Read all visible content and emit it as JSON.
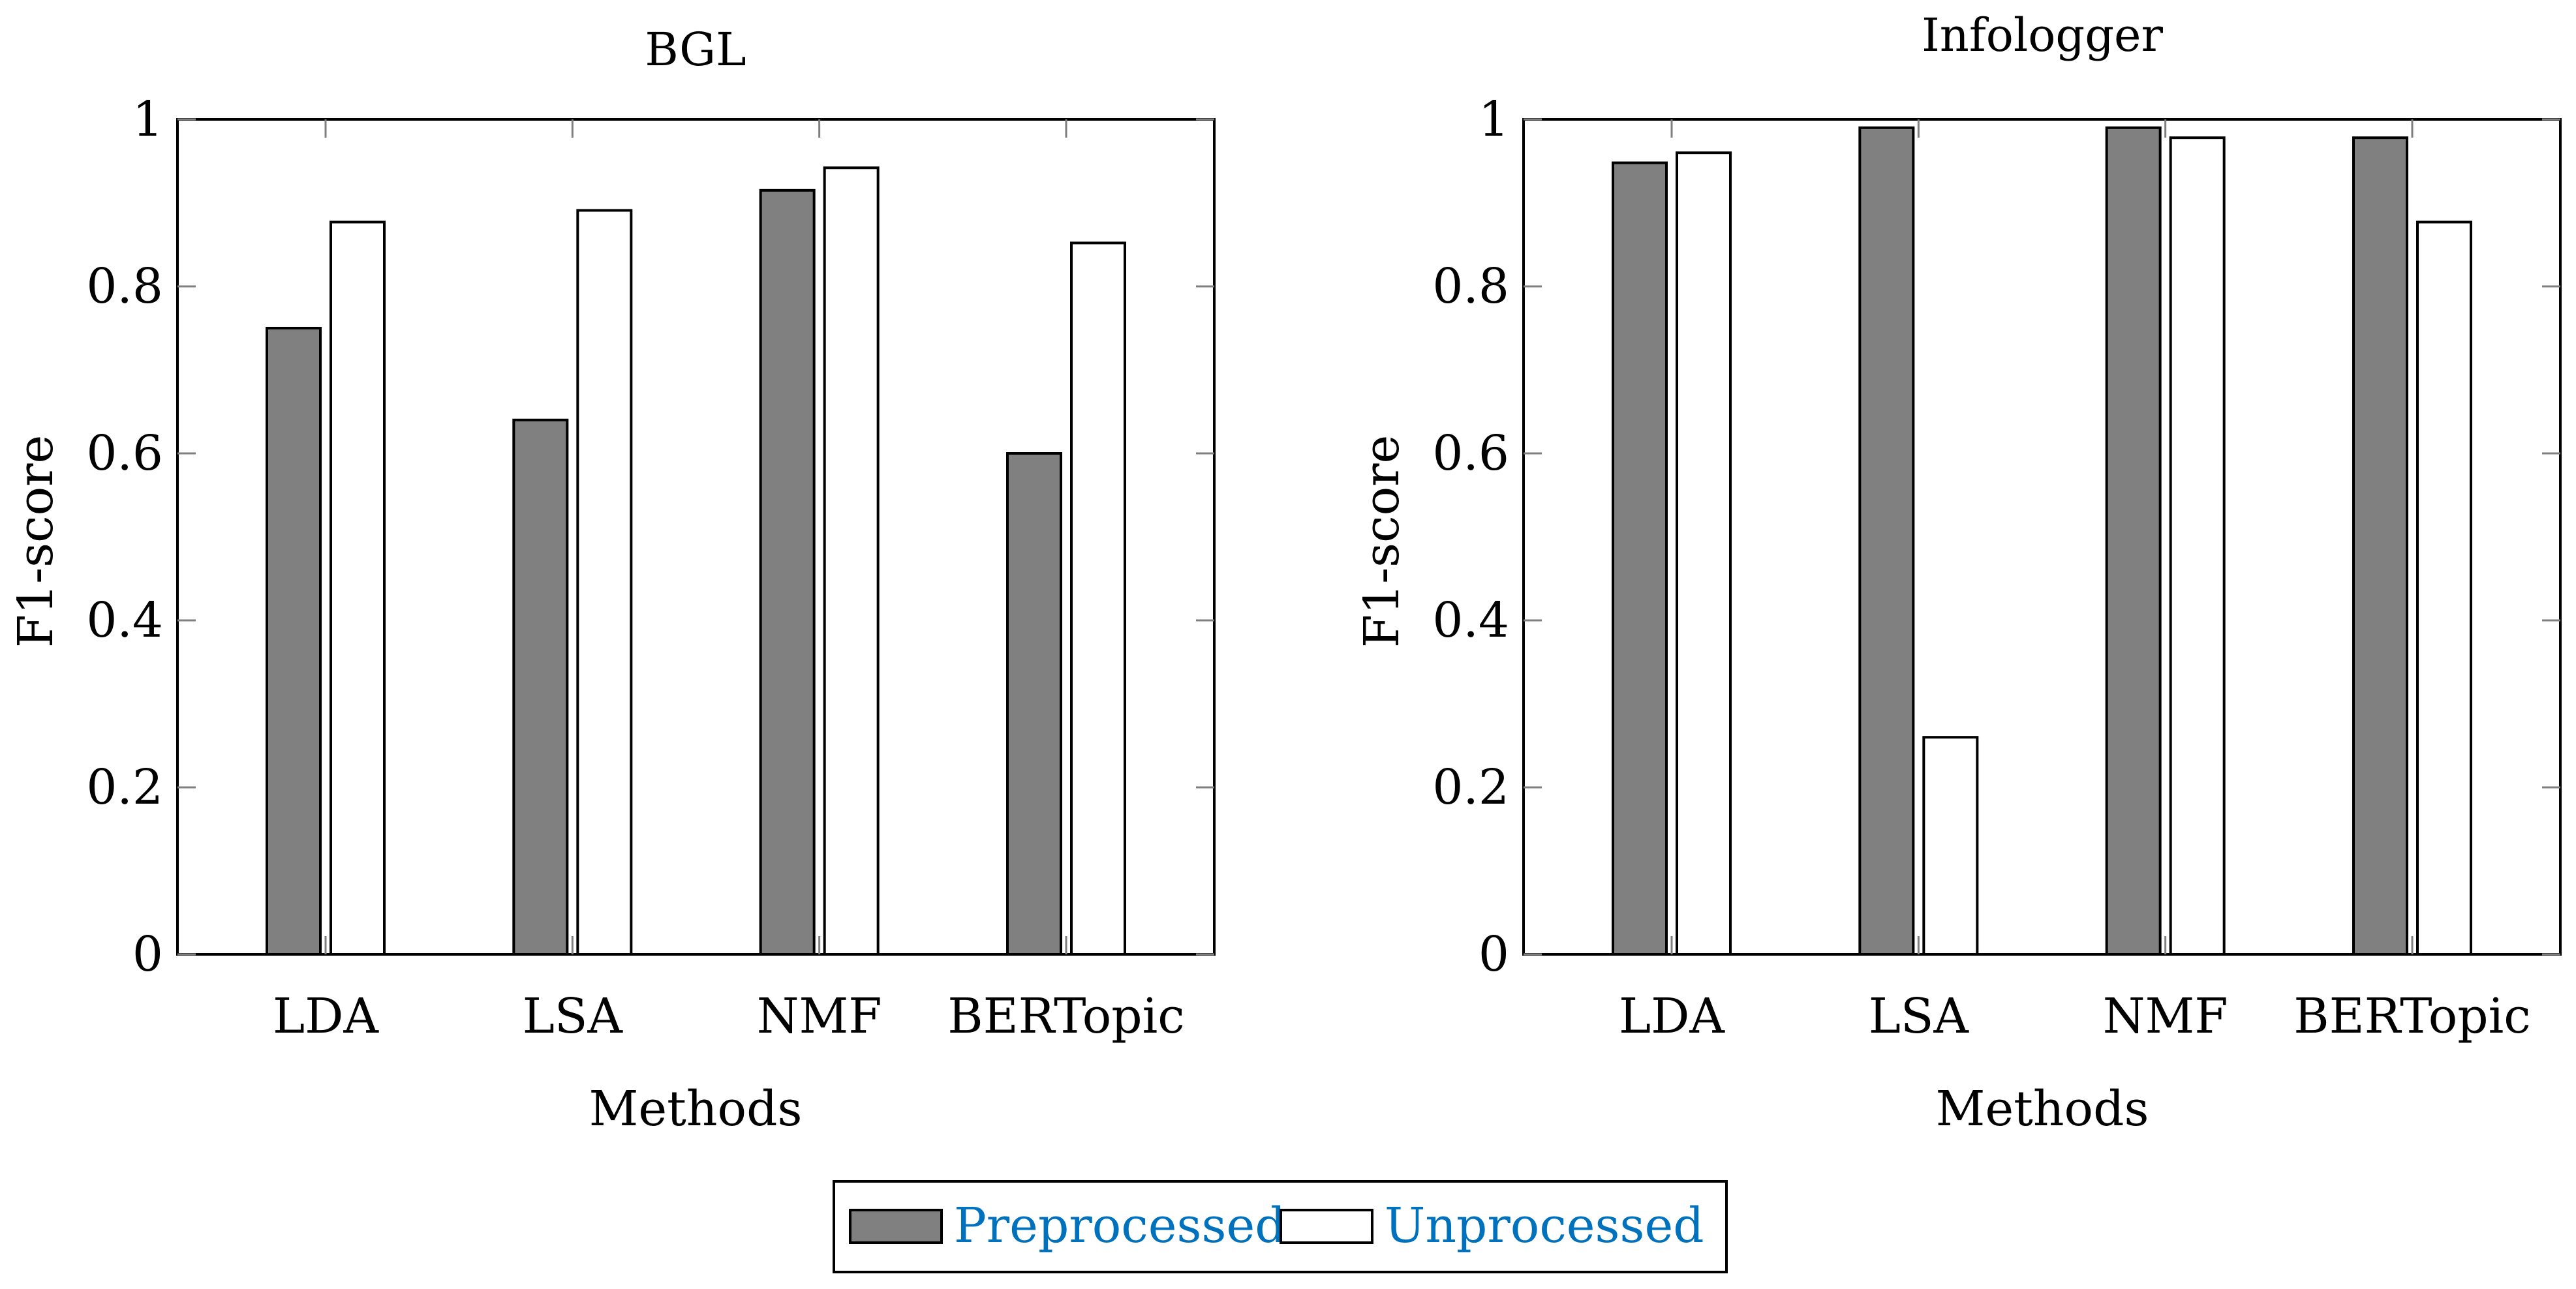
{
  "chart_data": [
    {
      "type": "bar",
      "title": "BGL",
      "xlabel": "Methods",
      "ylabel": "F1-score",
      "categories": [
        "LDA",
        "LSA",
        "NMF",
        "BERTopic"
      ],
      "ylim": [
        0,
        1
      ],
      "yticks": [
        0,
        0.2,
        0.4,
        0.6,
        0.8,
        1
      ],
      "ytick_labels": [
        "0",
        "0.2",
        "0.4",
        "0.6",
        "0.8",
        "1"
      ],
      "grid": false,
      "series": [
        {
          "name": "Preprocessed",
          "values": [
            0.75,
            0.64,
            0.915,
            0.6
          ]
        },
        {
          "name": "Unprocessed",
          "values": [
            0.877,
            0.891,
            0.942,
            0.852
          ]
        }
      ]
    },
    {
      "type": "bar",
      "title": "Infologger",
      "xlabel": "Methods",
      "ylabel": "F1-score",
      "categories": [
        "LDA",
        "LSA",
        "NMF",
        "BERTopic"
      ],
      "ylim": [
        0,
        1
      ],
      "yticks": [
        0,
        0.2,
        0.4,
        0.6,
        0.8,
        1
      ],
      "ytick_labels": [
        "0",
        "0.2",
        "0.4",
        "0.6",
        "0.8",
        "1"
      ],
      "grid": false,
      "series": [
        {
          "name": "Preprocessed",
          "values": [
            0.948,
            0.99,
            0.99,
            0.978
          ]
        },
        {
          "name": "Unprocessed",
          "values": [
            0.96,
            0.26,
            0.978,
            0.877
          ]
        }
      ]
    }
  ],
  "legend": {
    "placement": "bottom-center",
    "items": [
      {
        "label": "Preprocessed",
        "color": "#808080"
      },
      {
        "label": "Unprocessed",
        "color": "#ffffff"
      }
    ]
  },
  "colors": {
    "preprocessed": "#808080",
    "unprocessed": "#ffffff",
    "legend_text": "#0072bd"
  }
}
